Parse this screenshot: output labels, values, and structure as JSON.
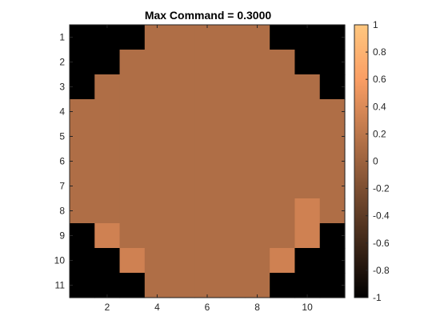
{
  "chart_data": {
    "type": "heatmap",
    "title": "Max Command = 0.3000",
    "xlabel": "",
    "ylabel": "",
    "x_ticks": [
      "2",
      "4",
      "6",
      "8",
      "10"
    ],
    "y_ticks": [
      "1",
      "2",
      "3",
      "4",
      "5",
      "6",
      "7",
      "8",
      "9",
      "10",
      "11"
    ],
    "xlim": [
      0.5,
      11.5
    ],
    "ylim": [
      0.5,
      11.5
    ],
    "y_direction": "reverse",
    "clim": [
      -1,
      1
    ],
    "colormap": "copper",
    "colorbar_ticks": [
      "1",
      "0.8",
      "0.6",
      "0.4",
      "0.2",
      "0",
      "-0.2",
      "-0.4",
      "-0.6",
      "-0.8",
      "-1"
    ],
    "rows": 11,
    "cols": 11,
    "values": [
      [
        -1,
        -1,
        -1,
        0.1,
        0.1,
        0.1,
        0.1,
        0.1,
        -1,
        -1,
        -1
      ],
      [
        -1,
        -1,
        0.1,
        0.1,
        0.1,
        0.1,
        0.1,
        0.1,
        0.1,
        -1,
        -1
      ],
      [
        -1,
        0.1,
        0.1,
        0.1,
        0.1,
        0.1,
        0.1,
        0.1,
        0.1,
        0.1,
        -1
      ],
      [
        0.1,
        0.1,
        0.1,
        0.1,
        0.1,
        0.1,
        0.1,
        0.1,
        0.1,
        0.1,
        0.1
      ],
      [
        0.1,
        0.1,
        0.1,
        0.1,
        0.1,
        0.1,
        0.1,
        0.1,
        0.1,
        0.1,
        0.1
      ],
      [
        0.1,
        0.1,
        0.1,
        0.1,
        0.1,
        0.1,
        0.1,
        0.1,
        0.1,
        0.1,
        0.1
      ],
      [
        0.1,
        0.1,
        0.1,
        0.1,
        0.1,
        0.1,
        0.1,
        0.1,
        0.1,
        0.1,
        0.1
      ],
      [
        0.1,
        0.1,
        0.1,
        0.1,
        0.1,
        0.1,
        0.1,
        0.1,
        0.1,
        0.3,
        0.1
      ],
      [
        -1,
        0.3,
        0.1,
        0.1,
        0.1,
        0.1,
        0.1,
        0.1,
        0.1,
        0.3,
        -1
      ],
      [
        -1,
        -1,
        0.3,
        0.1,
        0.1,
        0.1,
        0.1,
        0.1,
        0.3,
        -1,
        -1
      ],
      [
        -1,
        -1,
        -1,
        0.1,
        0.1,
        0.1,
        0.1,
        0.1,
        -1,
        -1,
        -1
      ]
    ]
  }
}
